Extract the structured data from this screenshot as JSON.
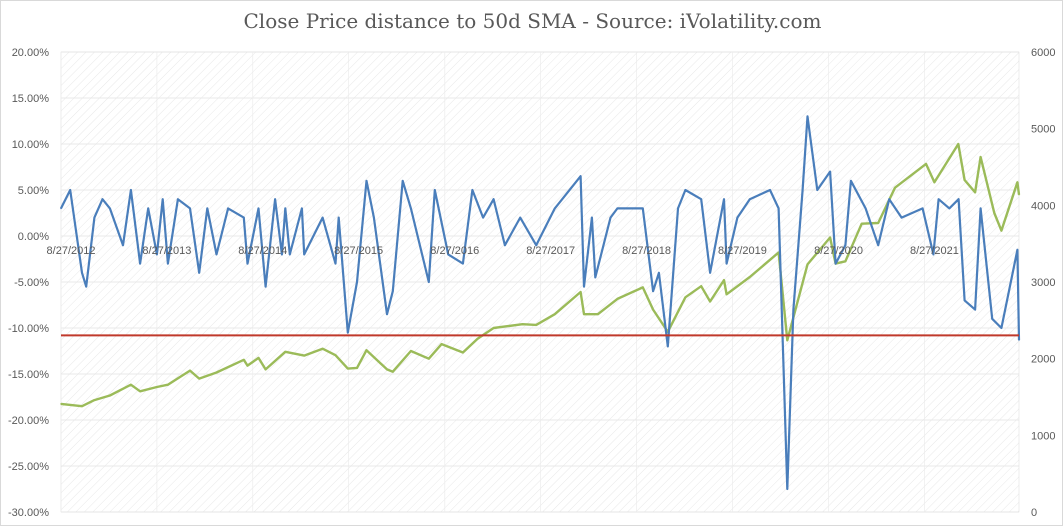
{
  "chart_data": {
    "type": "line",
    "title": "Close Price distance to 50d SMA - Source: iVolatility.com",
    "x_range": [
      "8/27/2012",
      "8/22/2022"
    ],
    "x_ticks": [
      "8/27/2012",
      "8/27/2013",
      "8/27/2014",
      "8/27/2015",
      "8/27/2016",
      "8/27/2017",
      "8/27/2018",
      "8/27/2019",
      "8/27/2020",
      "8/27/2021"
    ],
    "y_left": {
      "min": -0.3,
      "max": 0.2,
      "step": 0.05,
      "ticks": [
        "20.00%",
        "15.00%",
        "10.00%",
        "5.00%",
        "0.00%",
        "-5.00%",
        "-10.00%",
        "-15.00%",
        "-20.00%",
        "-25.00%",
        "-30.00%"
      ]
    },
    "y_right": {
      "min": 0,
      "max": 6000,
      "step": 1000,
      "ticks": [
        "6000",
        "5000",
        "4000",
        "3000",
        "2000",
        "1000",
        "0"
      ]
    },
    "threshold_line": {
      "axis": "left",
      "value": -0.108,
      "color": "#c0392b"
    },
    "grid": "diagonal hatch",
    "series": [
      {
        "axis": "left",
        "color": "#4a7ebb",
        "points": [
          [
            "8/27/2012",
            0.03
          ],
          [
            "10/1/2012",
            0.05
          ],
          [
            "11/15/2012",
            -0.04
          ],
          [
            "12/1/2012",
            -0.055
          ],
          [
            "1/1/2013",
            0.02
          ],
          [
            "2/1/2013",
            0.04
          ],
          [
            "3/1/2013",
            0.03
          ],
          [
            "4/20/2013",
            -0.01
          ],
          [
            "5/20/2013",
            0.05
          ],
          [
            "6/24/2013",
            -0.03
          ],
          [
            "7/25/2013",
            0.03
          ],
          [
            "8/27/2013",
            -0.02
          ],
          [
            "9/18/2013",
            0.04
          ],
          [
            "10/8/2013",
            -0.03
          ],
          [
            "11/15/2013",
            0.04
          ],
          [
            "12/31/2013",
            0.03
          ],
          [
            "2/4/2014",
            -0.04
          ],
          [
            "3/7/2014",
            0.03
          ],
          [
            "4/11/2014",
            -0.02
          ],
          [
            "5/25/2014",
            0.03
          ],
          [
            "7/24/2014",
            0.02
          ],
          [
            "8/7/2014",
            -0.03
          ],
          [
            "9/18/2014",
            0.03
          ],
          [
            "10/15/2014",
            -0.055
          ],
          [
            "11/20/2014",
            0.04
          ],
          [
            "12/16/2014",
            -0.02
          ],
          [
            "12/29/2014",
            0.03
          ],
          [
            "1/15/2015",
            -0.02
          ],
          [
            "3/2/2015",
            0.03
          ],
          [
            "3/11/2015",
            -0.02
          ],
          [
            "5/20/2015",
            0.02
          ],
          [
            "7/8/2015",
            -0.03
          ],
          [
            "7/20/2015",
            0.02
          ],
          [
            "8/24/2015",
            -0.105
          ],
          [
            "9/28/2015",
            -0.05
          ],
          [
            "11/3/2015",
            0.06
          ],
          [
            "12/1/2015",
            0.02
          ],
          [
            "1/20/2016",
            -0.085
          ],
          [
            "2/11/2016",
            -0.06
          ],
          [
            "3/20/2016",
            0.06
          ],
          [
            "4/20/2016",
            0.03
          ],
          [
            "6/27/2016",
            -0.05
          ],
          [
            "7/20/2016",
            0.05
          ],
          [
            "9/9/2016",
            -0.02
          ],
          [
            "11/4/2016",
            -0.03
          ],
          [
            "12/10/2016",
            0.05
          ],
          [
            "1/20/2017",
            0.02
          ],
          [
            "3/1/2017",
            0.04
          ],
          [
            "4/13/2017",
            -0.01
          ],
          [
            "6/10/2017",
            0.02
          ],
          [
            "8/10/2017",
            -0.01
          ],
          [
            "10/20/2017",
            0.03
          ],
          [
            "1/26/2018",
            0.065
          ],
          [
            "2/8/2018",
            -0.055
          ],
          [
            "3/10/2018",
            0.02
          ],
          [
            "3/23/2018",
            -0.045
          ],
          [
            "5/20/2018",
            0.02
          ],
          [
            "6/15/2018",
            0.03
          ],
          [
            "8/20/2018",
            0.03
          ],
          [
            "9/20/2018",
            0.03
          ],
          [
            "10/29/2018",
            -0.06
          ],
          [
            "11/20/2018",
            -0.04
          ],
          [
            "12/24/2018",
            -0.12
          ],
          [
            "2/1/2019",
            0.03
          ],
          [
            "3/1/2019",
            0.05
          ],
          [
            "4/30/2019",
            0.04
          ],
          [
            "6/3/2019",
            -0.04
          ],
          [
            "7/26/2019",
            0.04
          ],
          [
            "8/5/2019",
            -0.03
          ],
          [
            "9/15/2019",
            0.02
          ],
          [
            "11/1/2019",
            0.04
          ],
          [
            "1/17/2020",
            0.05
          ],
          [
            "2/19/2020",
            0.03
          ],
          [
            "3/23/2020",
            -0.275
          ],
          [
            "4/15/2020",
            -0.08
          ],
          [
            "5/20/2020",
            0.05
          ],
          [
            "6/8/2020",
            0.13
          ],
          [
            "7/15/2020",
            0.05
          ],
          [
            "9/2/2020",
            0.07
          ],
          [
            "9/23/2020",
            -0.03
          ],
          [
            "10/30/2020",
            -0.01
          ],
          [
            "11/20/2020",
            0.06
          ],
          [
            "1/15/2021",
            0.03
          ],
          [
            "3/4/2021",
            -0.01
          ],
          [
            "4/15/2021",
            0.04
          ],
          [
            "6/1/2021",
            0.02
          ],
          [
            "8/20/2021",
            0.03
          ],
          [
            "9/30/2021",
            -0.02
          ],
          [
            "10/20/2021",
            0.04
          ],
          [
            "11/30/2021",
            0.03
          ],
          [
            "1/4/2022",
            0.04
          ],
          [
            "1/27/2022",
            -0.07
          ],
          [
            "3/8/2022",
            -0.08
          ],
          [
            "3/29/2022",
            0.03
          ],
          [
            "5/12/2022",
            -0.09
          ],
          [
            "6/16/2022",
            -0.1
          ],
          [
            "8/16/2022",
            -0.015
          ],
          [
            "8/22/2022",
            -0.113
          ]
        ]
      },
      {
        "axis": "right",
        "color": "#9bbb59",
        "points": [
          [
            "8/27/2012",
            1410
          ],
          [
            "11/15/2012",
            1380
          ],
          [
            "1/1/2013",
            1460
          ],
          [
            "3/1/2013",
            1520
          ],
          [
            "5/20/2013",
            1660
          ],
          [
            "6/24/2013",
            1575
          ],
          [
            "8/27/2013",
            1630
          ],
          [
            "10/8/2013",
            1660
          ],
          [
            "12/31/2013",
            1845
          ],
          [
            "2/4/2014",
            1740
          ],
          [
            "4/11/2014",
            1820
          ],
          [
            "7/24/2014",
            1985
          ],
          [
            "8/7/2014",
            1910
          ],
          [
            "9/18/2014",
            2010
          ],
          [
            "10/15/2014",
            1860
          ],
          [
            "12/29/2014",
            2090
          ],
          [
            "3/11/2015",
            2040
          ],
          [
            "5/20/2015",
            2130
          ],
          [
            "7/8/2015",
            2045
          ],
          [
            "8/24/2015",
            1870
          ],
          [
            "9/28/2015",
            1880
          ],
          [
            "11/3/2015",
            2110
          ],
          [
            "1/20/2016",
            1860
          ],
          [
            "2/11/2016",
            1830
          ],
          [
            "4/20/2016",
            2100
          ],
          [
            "6/27/2016",
            2000
          ],
          [
            "8/15/2016",
            2190
          ],
          [
            "11/4/2016",
            2080
          ],
          [
            "12/30/2016",
            2260
          ],
          [
            "3/1/2017",
            2400
          ],
          [
            "6/19/2017",
            2450
          ],
          [
            "8/10/2017",
            2440
          ],
          [
            "10/20/2017",
            2580
          ],
          [
            "1/26/2018",
            2870
          ],
          [
            "2/8/2018",
            2580
          ],
          [
            "4/2/2018",
            2580
          ],
          [
            "6/15/2018",
            2780
          ],
          [
            "9/20/2018",
            2930
          ],
          [
            "10/29/2018",
            2640
          ],
          [
            "12/24/2018",
            2350
          ],
          [
            "3/1/2019",
            2800
          ],
          [
            "4/30/2019",
            2945
          ],
          [
            "6/3/2019",
            2745
          ],
          [
            "7/26/2019",
            3025
          ],
          [
            "8/5/2019",
            2840
          ],
          [
            "11/1/2019",
            3065
          ],
          [
            "2/19/2020",
            3385
          ],
          [
            "3/23/2020",
            2240
          ],
          [
            "6/8/2020",
            3230
          ],
          [
            "9/2/2020",
            3580
          ],
          [
            "9/23/2020",
            3240
          ],
          [
            "10/30/2020",
            3270
          ],
          [
            "12/31/2020",
            3760
          ],
          [
            "3/4/2021",
            3770
          ],
          [
            "5/7/2021",
            4230
          ],
          [
            "9/2/2021",
            4540
          ],
          [
            "10/4/2021",
            4300
          ],
          [
            "1/3/2022",
            4800
          ],
          [
            "1/27/2022",
            4330
          ],
          [
            "3/8/2022",
            4170
          ],
          [
            "3/29/2022",
            4630
          ],
          [
            "5/20/2022",
            3900
          ],
          [
            "6/16/2022",
            3670
          ],
          [
            "8/16/2022",
            4300
          ],
          [
            "8/22/2022",
            4140
          ]
        ]
      }
    ]
  }
}
